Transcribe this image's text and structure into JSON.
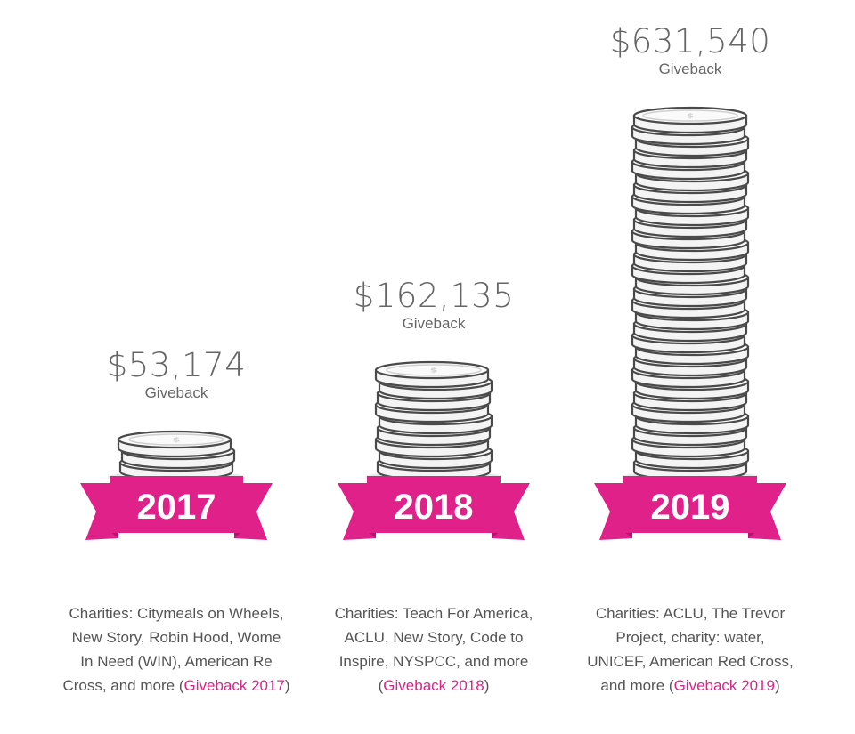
{
  "colors": {
    "accent": "#e0218a",
    "ribbon": "#e0218a",
    "ribbon_dark": "#b0176c",
    "coin_fill": "#f4f4f4",
    "coin_stroke": "#4a4a4a"
  },
  "chart_data": {
    "type": "bar",
    "title": "",
    "categories": [
      "2017",
      "2018",
      "2019"
    ],
    "values": [
      53174,
      162135,
      631540
    ],
    "value_labels": [
      "$53,174",
      "$162,135",
      "$631,540"
    ],
    "value_caption": "Giveback",
    "coin_counts": [
      3,
      9,
      31
    ],
    "notes": [
      {
        "prefix": "Charities: Citymeals on Wheels, New Story, Robin Hood, Wome In Need (WIN), American Re Cross, and more (",
        "link": "Giveback 2017",
        "suffix": ")",
        "lines": [
          "Charities: Citymeals on Wheels,",
          "New Story, Robin Hood, Wome",
          "In Need (WIN), American Re",
          "Cross, and more ("
        ]
      },
      {
        "prefix": "Charities: Teach For America, ACLU, New Story, Code to Inspire, NYSPCC, and more (",
        "link": "Giveback 2018",
        "suffix": ")",
        "lines": [
          "Charities: Teach For America,",
          "ACLU, New Story, Code to",
          "Inspire, NYSPCC, and more",
          "("
        ]
      },
      {
        "prefix": "Charities: ACLU, The Trevor Project, charity: water, UNICEF, American Red Cross, and more (",
        "link": "Giveback 2019",
        "suffix": ")",
        "lines": [
          "Charities: ACLU, The Trevor",
          "Project, charity: water,",
          "UNICEF, American Red Cross,",
          "and more ("
        ]
      }
    ]
  }
}
